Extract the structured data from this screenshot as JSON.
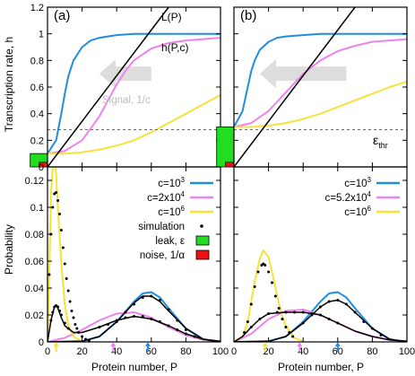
{
  "colors": {
    "blue": "#1f8ee0",
    "pink": "#ee82ee",
    "yellow": "#f5e23a",
    "black": "#000000",
    "green": "#22dd22",
    "red": "#ee1111",
    "arrow": "#dddddd",
    "threshold": "#555555"
  },
  "text": {
    "panel_a": "(a)",
    "panel_b": "(b)",
    "line_label": "L(P)",
    "curve_label": "h(P,c)",
    "signal_label": "Signal, 1/c",
    "threshold_label": "ε",
    "threshold_sub": "thr",
    "ylabel_top": "Transcription rate, h",
    "ylabel_bottom": "Probability",
    "xlabel": "Protein number, P"
  },
  "legend_a": [
    {
      "base": "c=10",
      "sup": "3",
      "tail": "",
      "color": "#1f8ee0",
      "kind": "line"
    },
    {
      "base": "c=2x10",
      "sup": "4",
      "tail": "",
      "color": "#ee82ee",
      "kind": "line"
    },
    {
      "base": "c=10",
      "sup": "6",
      "tail": "",
      "color": "#f5e23a",
      "kind": "line"
    },
    {
      "base": "simulation",
      "sup": "",
      "tail": "",
      "color": "#000000",
      "kind": "dots"
    },
    {
      "base": "leak, ε",
      "sup": "",
      "tail": "",
      "color": "#22dd22",
      "kind": "box"
    },
    {
      "base": "noise, 1/α",
      "sup": "",
      "tail": "",
      "color": "#ee1111",
      "kind": "box"
    }
  ],
  "legend_b": [
    {
      "base": "c=10",
      "sup": "3",
      "tail": "",
      "color": "#1f8ee0",
      "kind": "line"
    },
    {
      "base": "c=5.2x10",
      "sup": "4",
      "tail": "",
      "color": "#ee82ee",
      "kind": "line"
    },
    {
      "base": "c=10",
      "sup": "6",
      "tail": "",
      "color": "#f5e23a",
      "kind": "line"
    }
  ],
  "chart_data": [
    {
      "panel": "(a) top",
      "type": "line",
      "xlim": [
        0,
        100
      ],
      "ylim": [
        0,
        1.2
      ],
      "x_ticks": [
        0,
        20,
        40,
        60,
        80,
        100
      ],
      "y_ticks": [
        0,
        0.2,
        0.4,
        0.6,
        0.8,
        1,
        1.2
      ],
      "x_tick_labels_shown": false,
      "y_tick_labels": [
        "0",
        "0.2",
        "0.4",
        "0.6",
        "0.8",
        "1",
        "1.2"
      ],
      "ylabel": "Transcription rate, h",
      "threshold": 0.28,
      "leak_box": {
        "x": [
          -10,
          0
        ],
        "y": [
          0,
          0.1
        ]
      },
      "noise_box": {
        "x": [
          -5,
          0
        ],
        "y": [
          0,
          0.035
        ]
      },
      "signal_arrow": {
        "from_x": 60,
        "to_x": 30,
        "y": 0.7
      },
      "series": [
        {
          "color": "blue",
          "x": [
            0,
            5,
            8,
            10,
            12,
            15,
            20,
            25,
            30,
            40,
            50,
            60,
            80,
            100
          ],
          "y": [
            0.1,
            0.2,
            0.4,
            0.55,
            0.68,
            0.8,
            0.9,
            0.95,
            0.97,
            0.99,
            1.0,
            1.0,
            1.0,
            1.0
          ]
        },
        {
          "color": "pink",
          "x": [
            0,
            10,
            20,
            30,
            35,
            40,
            45,
            50,
            60,
            70,
            80,
            90,
            100
          ],
          "y": [
            0.1,
            0.12,
            0.2,
            0.38,
            0.5,
            0.62,
            0.72,
            0.8,
            0.89,
            0.93,
            0.95,
            0.96,
            0.97
          ]
        },
        {
          "color": "yellow",
          "x": [
            0,
            10,
            20,
            30,
            40,
            50,
            60,
            70,
            80,
            90,
            100
          ],
          "y": [
            0.1,
            0.1,
            0.11,
            0.13,
            0.16,
            0.2,
            0.26,
            0.33,
            0.4,
            0.47,
            0.54
          ]
        },
        {
          "color": "black",
          "x": [
            0,
            70
          ],
          "y": [
            0,
            1.2
          ]
        }
      ]
    },
    {
      "panel": "(b) top",
      "type": "line",
      "xlim": [
        0,
        100
      ],
      "ylim": [
        0,
        1.2
      ],
      "x_ticks": [
        0,
        20,
        40,
        60,
        80,
        100
      ],
      "y_ticks": [
        0,
        0.2,
        0.4,
        0.6,
        0.8,
        1,
        1.2
      ],
      "x_tick_labels_shown": false,
      "y_tick_labels_shown": false,
      "threshold": 0.28,
      "leak_box": {
        "x": [
          -10,
          0
        ],
        "y": [
          0,
          0.3
        ]
      },
      "noise_box": {
        "x": [
          -5,
          0
        ],
        "y": [
          0,
          0.035
        ]
      },
      "signal_arrow": {
        "from_x": 65,
        "to_x": 15,
        "y": 0.7
      },
      "series": [
        {
          "color": "blue",
          "x": [
            0,
            5,
            8,
            10,
            12,
            15,
            20,
            25,
            30,
            40,
            50,
            60,
            80,
            100
          ],
          "y": [
            0.3,
            0.42,
            0.6,
            0.72,
            0.8,
            0.88,
            0.94,
            0.97,
            0.98,
            0.99,
            1.0,
            1.0,
            1.0,
            1.0
          ]
        },
        {
          "color": "pink",
          "x": [
            0,
            10,
            20,
            30,
            40,
            50,
            60,
            70,
            80,
            90,
            100
          ],
          "y": [
            0.3,
            0.33,
            0.42,
            0.56,
            0.7,
            0.8,
            0.87,
            0.91,
            0.94,
            0.95,
            0.96
          ]
        },
        {
          "color": "yellow",
          "x": [
            0,
            10,
            20,
            30,
            40,
            50,
            60,
            70,
            80,
            90,
            100
          ],
          "y": [
            0.3,
            0.3,
            0.31,
            0.33,
            0.36,
            0.4,
            0.45,
            0.5,
            0.55,
            0.6,
            0.64
          ]
        },
        {
          "color": "black",
          "x": [
            0,
            70
          ],
          "y": [
            0,
            1.2
          ]
        }
      ]
    },
    {
      "panel": "(a) bottom",
      "type": "line",
      "xlim": [
        0,
        100
      ],
      "ylim": [
        0,
        0.13
      ],
      "x_ticks": [
        0,
        20,
        40,
        60,
        80,
        100
      ],
      "y_ticks": [
        0,
        0.02,
        0.04,
        0.06,
        0.08,
        0.1,
        0.12
      ],
      "x_tick_labels": [
        "0",
        "20",
        "40",
        "60",
        "80",
        "100"
      ],
      "y_tick_labels": [
        "0",
        "0.02",
        "0.04",
        "0.06",
        "0.08",
        "0.1",
        "0.12"
      ],
      "xlabel": "Protein number, P",
      "ylabel": "Probability",
      "mean_arrows": [
        {
          "x": 5,
          "color": "yellow"
        },
        {
          "x": 38,
          "color": "pink"
        },
        {
          "x": 58,
          "color": "blue"
        }
      ],
      "series": [
        {
          "color": "blue",
          "x": [
            0,
            20,
            30,
            40,
            50,
            55,
            60,
            65,
            70,
            80,
            90,
            100
          ],
          "y": [
            0,
            0.0005,
            0.004,
            0.015,
            0.03,
            0.036,
            0.037,
            0.033,
            0.025,
            0.01,
            0.002,
            0
          ]
        },
        {
          "color": "pink",
          "x": [
            0,
            10,
            20,
            30,
            40,
            50,
            60,
            70,
            80,
            90,
            100
          ],
          "y": [
            0,
            0.003,
            0.009,
            0.016,
            0.021,
            0.022,
            0.018,
            0.011,
            0.005,
            0.0015,
            0.0003
          ]
        },
        {
          "color": "yellow",
          "x": [
            0,
            1,
            2,
            3,
            4,
            5,
            6,
            8,
            10,
            12,
            15,
            20
          ],
          "y": [
            0,
            0.05,
            0.11,
            0.128,
            0.134,
            0.125,
            0.1,
            0.058,
            0.028,
            0.012,
            0.004,
            0
          ]
        },
        {
          "color": "black",
          "x": [
            0,
            2,
            4,
            5,
            6,
            8,
            10,
            15,
            20,
            30,
            40,
            50,
            60,
            70,
            80,
            90,
            100
          ],
          "y": [
            0,
            0.016,
            0.026,
            0.027,
            0.025,
            0.018,
            0.012,
            0.007,
            0.007,
            0.011,
            0.016,
            0.019,
            0.017,
            0.012,
            0.006,
            0.002,
            0.0005
          ]
        },
        {
          "color": "black",
          "x": [
            0,
            20,
            30,
            40,
            50,
            55,
            60,
            65,
            70,
            80,
            90,
            100
          ],
          "y": [
            0,
            0.0005,
            0.004,
            0.015,
            0.029,
            0.034,
            0.034,
            0.03,
            0.023,
            0.01,
            0.002,
            0
          ]
        }
      ],
      "simulation": [
        {
          "x": [
            1,
            2,
            3,
            4,
            5,
            6,
            7,
            8,
            9,
            10,
            11,
            12,
            13,
            14,
            15,
            16,
            17,
            18,
            20,
            22,
            24
          ],
          "y": [
            0.05,
            0.08,
            0.1,
            0.11,
            0.111,
            0.105,
            0.095,
            0.083,
            0.07,
            0.058,
            0.047,
            0.038,
            0.03,
            0.023,
            0.018,
            0.013,
            0.01,
            0.007,
            0.004,
            0.002,
            0.001
          ]
        },
        {
          "x": [
            2,
            3,
            4,
            5,
            6,
            7,
            8,
            10,
            12
          ],
          "y": [
            0.016,
            0.022,
            0.026,
            0.027,
            0.026,
            0.023,
            0.02,
            0.014,
            0.01
          ]
        },
        {
          "x": [
            30,
            35,
            40,
            45,
            50,
            55,
            60,
            65,
            70,
            75,
            80
          ],
          "y": [
            0.011,
            0.013,
            0.016,
            0.018,
            0.019,
            0.019,
            0.017,
            0.015,
            0.012,
            0.009,
            0.006
          ]
        },
        {
          "x": [
            40,
            45,
            50,
            55,
            60,
            65,
            70,
            75,
            80,
            85
          ],
          "y": [
            0.015,
            0.022,
            0.028,
            0.033,
            0.034,
            0.031,
            0.024,
            0.016,
            0.009,
            0.004
          ]
        }
      ]
    },
    {
      "panel": "(b) bottom",
      "type": "line",
      "xlim": [
        0,
        100
      ],
      "ylim": [
        0,
        0.13
      ],
      "x_ticks": [
        0,
        20,
        40,
        60,
        80,
        100
      ],
      "y_ticks": [
        0,
        0.02,
        0.04,
        0.06,
        0.08,
        0.1,
        0.12
      ],
      "x_tick_labels": [
        "0",
        "20",
        "40",
        "60",
        "80",
        "100"
      ],
      "y_tick_labels_shown": false,
      "xlabel": "Protein number, P",
      "mean_arrows": [
        {
          "x": 18,
          "color": "yellow"
        },
        {
          "x": 38,
          "color": "pink"
        },
        {
          "x": 60,
          "color": "blue"
        }
      ],
      "series": [
        {
          "color": "blue",
          "x": [
            0,
            20,
            30,
            40,
            50,
            55,
            60,
            65,
            70,
            80,
            90,
            100
          ],
          "y": [
            0,
            0.0005,
            0.004,
            0.015,
            0.03,
            0.036,
            0.037,
            0.033,
            0.025,
            0.01,
            0.002,
            0
          ]
        },
        {
          "color": "pink",
          "x": [
            0,
            10,
            20,
            30,
            40,
            50,
            60,
            70,
            80,
            90,
            100
          ],
          "y": [
            0,
            0.006,
            0.017,
            0.023,
            0.024,
            0.02,
            0.014,
            0.008,
            0.004,
            0.0015,
            0.0005
          ]
        },
        {
          "color": "yellow",
          "x": [
            0,
            5,
            8,
            10,
            12,
            15,
            17,
            20,
            22,
            25,
            28,
            30,
            35,
            40
          ],
          "y": [
            0,
            0.004,
            0.015,
            0.03,
            0.045,
            0.062,
            0.068,
            0.063,
            0.052,
            0.034,
            0.019,
            0.012,
            0.003,
            0.0005
          ]
        },
        {
          "color": "black",
          "x": [
            0,
            5,
            10,
            15,
            20,
            30,
            40,
            50,
            60,
            70,
            80,
            90,
            100
          ],
          "y": [
            0,
            0.004,
            0.011,
            0.017,
            0.021,
            0.022,
            0.022,
            0.02,
            0.014,
            0.008,
            0.004,
            0.0015,
            0.0005
          ]
        },
        {
          "color": "black",
          "x": [
            0,
            20,
            30,
            40,
            50,
            55,
            60,
            65,
            70,
            80,
            90,
            100
          ],
          "y": [
            0,
            0.0005,
            0.004,
            0.014,
            0.026,
            0.03,
            0.031,
            0.028,
            0.022,
            0.01,
            0.002,
            0
          ]
        }
      ],
      "simulation": [
        {
          "x": [
            6,
            8,
            10,
            12,
            14,
            16,
            17,
            18,
            20,
            22,
            24,
            26,
            28,
            30,
            32,
            34
          ],
          "y": [
            0.007,
            0.015,
            0.028,
            0.041,
            0.052,
            0.057,
            0.058,
            0.057,
            0.052,
            0.044,
            0.034,
            0.025,
            0.017,
            0.011,
            0.007,
            0.004
          ]
        },
        {
          "x": [
            10,
            15,
            20,
            25,
            30,
            35,
            40,
            45,
            50,
            55,
            60
          ],
          "y": [
            0.011,
            0.017,
            0.021,
            0.022,
            0.022,
            0.022,
            0.022,
            0.021,
            0.02,
            0.017,
            0.014
          ]
        },
        {
          "x": [
            40,
            45,
            50,
            55,
            60,
            65,
            70,
            75,
            80,
            85
          ],
          "y": [
            0.014,
            0.02,
            0.026,
            0.03,
            0.031,
            0.028,
            0.022,
            0.015,
            0.01,
            0.005
          ]
        }
      ]
    }
  ]
}
